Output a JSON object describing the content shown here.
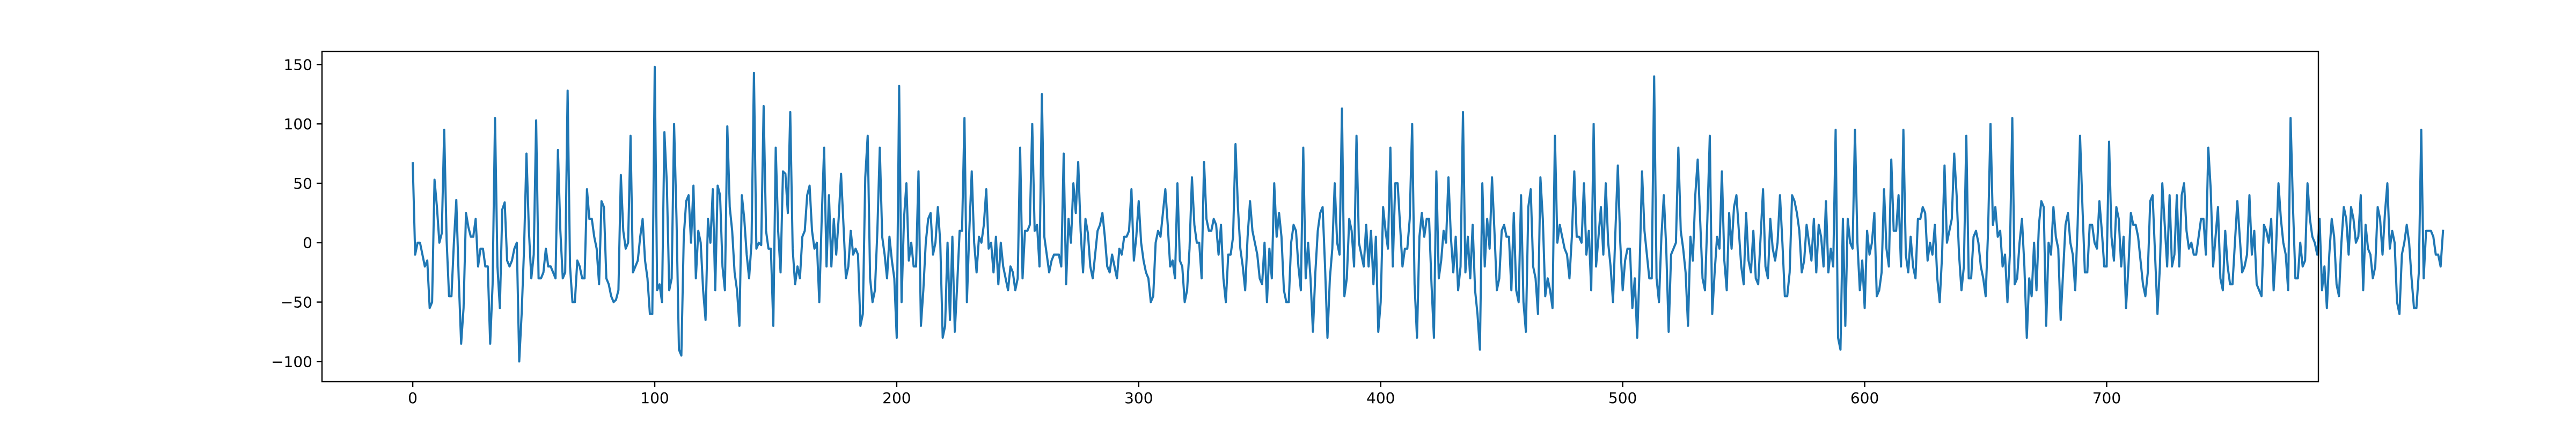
{
  "chart_data": {
    "type": "line",
    "title": "",
    "xlabel": "",
    "ylabel": "",
    "xlim": [
      -37.5,
      787.5
    ],
    "ylim": [
      -117,
      161
    ],
    "xticks": [
      0,
      100,
      200,
      300,
      400,
      500,
      600,
      700
    ],
    "xtick_labels": [
      "0",
      "100",
      "200",
      "300",
      "400",
      "500",
      "600",
      "700"
    ],
    "yticks": [
      -100,
      -50,
      0,
      50,
      100,
      150
    ],
    "ytick_labels": [
      "−100",
      "−50",
      "0",
      "50",
      "100",
      "150"
    ],
    "grid": false,
    "legend": "none",
    "series": [
      {
        "color": "#1f77b4",
        "x_start": 0,
        "x_step": 1,
        "values": [
          67,
          -10,
          0,
          0,
          -10,
          -20,
          -15,
          -55,
          -50,
          53,
          30,
          0,
          8,
          95,
          2,
          -45,
          -45,
          0,
          36,
          -30,
          -85,
          -55,
          25,
          13,
          5,
          5,
          20,
          -20,
          -5,
          -5,
          -20,
          -20,
          -85,
          -35,
          105,
          -20,
          -55,
          28,
          34,
          -15,
          -20,
          -15,
          -5,
          0,
          -100,
          -60,
          -5,
          75,
          10,
          -30,
          -10,
          103,
          -30,
          -30,
          -25,
          -5,
          -20,
          -20,
          -25,
          -30,
          78,
          10,
          -30,
          -25,
          128,
          -20,
          -50,
          -50,
          -15,
          -20,
          -30,
          -30,
          45,
          20,
          20,
          5,
          -5,
          -35,
          35,
          30,
          -30,
          -35,
          -45,
          -50,
          -48,
          -40,
          57,
          10,
          -5,
          0,
          90,
          -25,
          -20,
          -15,
          5,
          20,
          -15,
          -30,
          -60,
          -60,
          148,
          -40,
          -35,
          -50,
          93,
          50,
          -40,
          -30,
          100,
          20,
          -90,
          -95,
          5,
          35,
          40,
          0,
          48,
          -30,
          10,
          0,
          -40,
          -65,
          20,
          0,
          45,
          -40,
          48,
          40,
          -20,
          -40,
          98,
          30,
          10,
          -25,
          -40,
          -70,
          40,
          20,
          -10,
          -30,
          0,
          143,
          -5,
          0,
          -2,
          115,
          10,
          -5,
          -5,
          -70,
          80,
          10,
          -25,
          60,
          58,
          25,
          110,
          -5,
          -35,
          -20,
          -30,
          5,
          10,
          40,
          48,
          10,
          -5,
          0,
          -50,
          20,
          80,
          -20,
          40,
          -20,
          20,
          -10,
          20,
          58,
          15,
          -30,
          -20,
          10,
          -10,
          -5,
          -10,
          -70,
          -60,
          55,
          90,
          -30,
          -50,
          -40,
          10,
          80,
          5,
          -10,
          -30,
          5,
          -15,
          -30,
          -80,
          132,
          -50,
          20,
          50,
          -15,
          0,
          -20,
          -20,
          60,
          -70,
          -40,
          0,
          20,
          25,
          -10,
          0,
          30,
          0,
          -80,
          -70,
          0,
          -65,
          5,
          -75,
          -35,
          10,
          10,
          105,
          -50,
          10,
          60,
          0,
          -25,
          5,
          0,
          15,
          45,
          -5,
          0,
          -25,
          5,
          -35,
          0,
          -20,
          -30,
          -40,
          -20,
          -25,
          -40,
          -30,
          80,
          -30,
          10,
          10,
          15,
          100,
          10,
          15,
          -20,
          125,
          5,
          -10,
          -25,
          -15,
          -10,
          -10,
          -10,
          -20,
          75,
          -35,
          20,
          0,
          50,
          25,
          68,
          10,
          -25,
          20,
          8,
          -20,
          -30,
          -10,
          10,
          15,
          25,
          5,
          -20,
          -25,
          -10,
          -20,
          -30,
          -5,
          -10,
          5,
          5,
          10,
          45,
          -15,
          5,
          35,
          0,
          -15,
          -25,
          -30,
          -50,
          -45,
          0,
          10,
          5,
          25,
          45,
          15,
          -20,
          -15,
          -30,
          50,
          -15,
          -20,
          -50,
          -40,
          -5,
          55,
          15,
          0,
          0,
          -30,
          68,
          20,
          10,
          10,
          20,
          15,
          -10,
          15,
          -30,
          -50,
          -10,
          -10,
          5,
          83,
          30,
          -5,
          -20,
          -40,
          5,
          35,
          10,
          0,
          -10,
          -30,
          -35,
          0,
          -50,
          -5,
          -30,
          50,
          5,
          25,
          5,
          -40,
          -50,
          -50,
          0,
          15,
          10,
          -20,
          -40,
          80,
          -30,
          0,
          -30,
          -75,
          -25,
          10,
          25,
          30,
          -20,
          -80,
          -30,
          -5,
          50,
          0,
          -10,
          113,
          -45,
          -30,
          20,
          10,
          -20,
          90,
          0,
          -10,
          -20,
          15,
          -20,
          10,
          -35,
          5,
          -75,
          -50,
          30,
          10,
          -5,
          80,
          -20,
          50,
          50,
          15,
          -20,
          -5,
          -5,
          20,
          100,
          -35,
          -80,
          5,
          25,
          5,
          20,
          20,
          -35,
          -80,
          60,
          -30,
          -15,
          10,
          0,
          55,
          5,
          -25,
          5,
          -40,
          -20,
          110,
          -25,
          5,
          -30,
          15,
          -40,
          -60,
          -90,
          50,
          -20,
          20,
          -5,
          55,
          10,
          -40,
          -30,
          10,
          15,
          5,
          5,
          -40,
          25,
          -40,
          -50,
          40,
          -50,
          -75,
          30,
          45,
          -20,
          -30,
          -60,
          55,
          20,
          -45,
          -30,
          -40,
          -55,
          90,
          0,
          15,
          5,
          -5,
          -10,
          -30,
          5,
          60,
          5,
          5,
          0,
          50,
          -10,
          10,
          -40,
          100,
          -20,
          5,
          30,
          -10,
          50,
          0,
          -20,
          -50,
          10,
          65,
          0,
          -40,
          -15,
          -5,
          -5,
          -55,
          -30,
          -80,
          -20,
          60,
          10,
          -10,
          -30,
          -30,
          140,
          -30,
          -50,
          5,
          40,
          -5,
          -75,
          -10,
          -5,
          0,
          80,
          10,
          -5,
          -25,
          -70,
          5,
          -15,
          40,
          70,
          20,
          -30,
          -40,
          20,
          90,
          -60,
          -25,
          5,
          -5,
          60,
          -15,
          -40,
          25,
          -5,
          30,
          40,
          10,
          -20,
          -35,
          25,
          -15,
          -25,
          10,
          -30,
          -35,
          5,
          45,
          -20,
          -30,
          20,
          -5,
          -15,
          0,
          40,
          0,
          -45,
          -45,
          -25,
          40,
          35,
          25,
          10,
          -25,
          -15,
          15,
          0,
          -15,
          20,
          -25,
          15,
          5,
          -20,
          35,
          -25,
          -5,
          -20,
          95,
          -80,
          -90,
          20,
          -70,
          20,
          0,
          -5,
          95,
          0,
          -40,
          -15,
          -55,
          10,
          -10,
          0,
          25,
          -45,
          -40,
          -25,
          45,
          -5,
          -20,
          70,
          10,
          10,
          40,
          -20,
          95,
          -10,
          -25,
          5,
          -20,
          -30,
          20,
          20,
          30,
          25,
          -15,
          0,
          -10,
          15,
          -30,
          -50,
          -10,
          65,
          0,
          10,
          20,
          75,
          40,
          -10,
          -40,
          -20,
          90,
          -30,
          -30,
          5,
          10,
          0,
          -20,
          -30,
          -45,
          10,
          100,
          15,
          30,
          5,
          10,
          -20,
          -10,
          -50,
          -10,
          105,
          -35,
          -30,
          0,
          20,
          -20,
          -80,
          -30,
          -45,
          0,
          -40,
          15,
          35,
          30,
          -70,
          0,
          -10,
          30,
          5,
          -5,
          -65,
          -25,
          15,
          25,
          0,
          -10,
          -40,
          15,
          90,
          30,
          -25,
          -25,
          15,
          15,
          0,
          -5,
          35,
          10,
          -20,
          -20,
          85,
          5,
          -15,
          30,
          20,
          -20,
          5,
          -55,
          -20,
          25,
          15,
          15,
          5,
          -15,
          -35,
          -45,
          -25,
          35,
          40,
          -10,
          -60,
          -20,
          50,
          15,
          -20,
          40,
          -20,
          -10,
          40,
          -20,
          40,
          50,
          10,
          -5,
          0,
          -10,
          -10,
          5,
          20,
          20,
          -10,
          80,
          45,
          -20,
          5,
          30,
          -30,
          -40,
          10,
          -20,
          -35,
          -35,
          0,
          35,
          5,
          -25,
          -20,
          -10,
          40,
          -10,
          10,
          -35,
          -40,
          -45,
          15,
          10,
          0,
          20,
          -40,
          -5,
          50,
          20,
          0,
          -10,
          -40,
          105,
          30,
          -30,
          -30,
          0,
          -20,
          -15,
          50,
          20,
          5,
          0,
          -10,
          20,
          -40,
          -20,
          -55,
          -10,
          20,
          5,
          -35,
          -45,
          0,
          30,
          20,
          -10,
          30,
          20,
          0,
          5,
          40,
          -40,
          15,
          -5,
          -10,
          -30,
          -20,
          30,
          20,
          -10,
          25,
          50,
          -5,
          10,
          0,
          -50,
          -60,
          -10,
          0,
          15,
          0,
          -30,
          -55,
          -55,
          -25,
          95,
          -30,
          10,
          10,
          10,
          5,
          -10,
          -10,
          -20,
          10
        ]
      }
    ]
  }
}
